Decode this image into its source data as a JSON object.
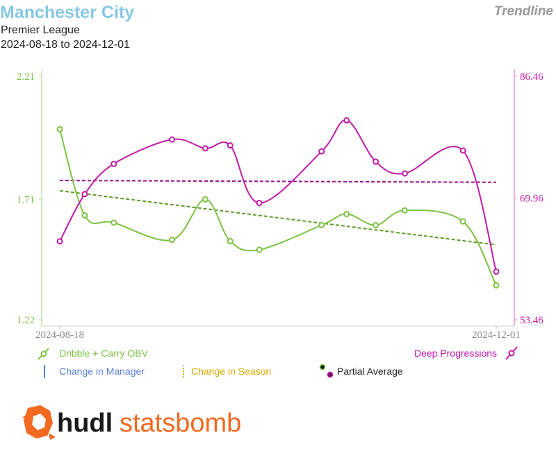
{
  "header": {
    "title": "Manchester City",
    "brand_tag": "Trendline",
    "competition": "Premier League",
    "date_range": "2024-08-18 to 2024-12-01"
  },
  "colors": {
    "left_series": "#7cc242",
    "left_trend": "#5a9a22",
    "right_series": "#c21aa8",
    "right_trend": "#9a1488",
    "manager": "#5b7fd6",
    "season": "#d7a800",
    "partial_left": "#1a1a1a",
    "partial_right": "#6a0a5e",
    "title": "#87c8e2",
    "logo": "#f26a21"
  },
  "legend": {
    "left_series": "Dribble + Carry OBV",
    "right_series": "Deep Progressions",
    "manager": "Change in Manager",
    "season": "Change in Season",
    "partial": "Partial Average"
  },
  "logo": {
    "part1": "hudl",
    "part2": "statsbomb"
  },
  "chart_data": {
    "type": "line",
    "x": [
      "2024-08-18",
      "2024-08-24",
      "2024-08-31",
      "2024-09-14",
      "2024-09-22",
      "2024-09-28",
      "2024-10-05",
      "2024-10-20",
      "2024-10-26",
      "2024-11-02",
      "2024-11-09",
      "2024-11-23",
      "2024-12-01"
    ],
    "x_ticks": [
      "2024-08-18",
      "2024-12-01"
    ],
    "series": [
      {
        "name": "Dribble + Carry OBV",
        "axis": "left",
        "values": [
          1.995,
          1.645,
          1.615,
          1.545,
          1.71,
          1.54,
          1.505,
          1.605,
          1.65,
          1.605,
          1.665,
          1.62,
          1.36
        ],
        "trend": [
          1.745,
          1.525
        ]
      },
      {
        "name": "Deep Progressions",
        "axis": "right",
        "values": [
          64.1,
          70.5,
          74.6,
          77.9,
          76.7,
          77.1,
          69.3,
          76.3,
          80.5,
          74.9,
          73.3,
          76.4,
          60.0
        ],
        "trend": [
          72.35,
          72.1
        ]
      }
    ],
    "left_axis": {
      "ylim": [
        1.22,
        2.21
      ],
      "ticks": [
        "1.22",
        "1.71",
        "2.21"
      ]
    },
    "right_axis": {
      "ylim": [
        53.46,
        86.46
      ],
      "ticks": [
        "53.46",
        "69.96",
        "86.46"
      ]
    },
    "legend_position": "bottom"
  }
}
